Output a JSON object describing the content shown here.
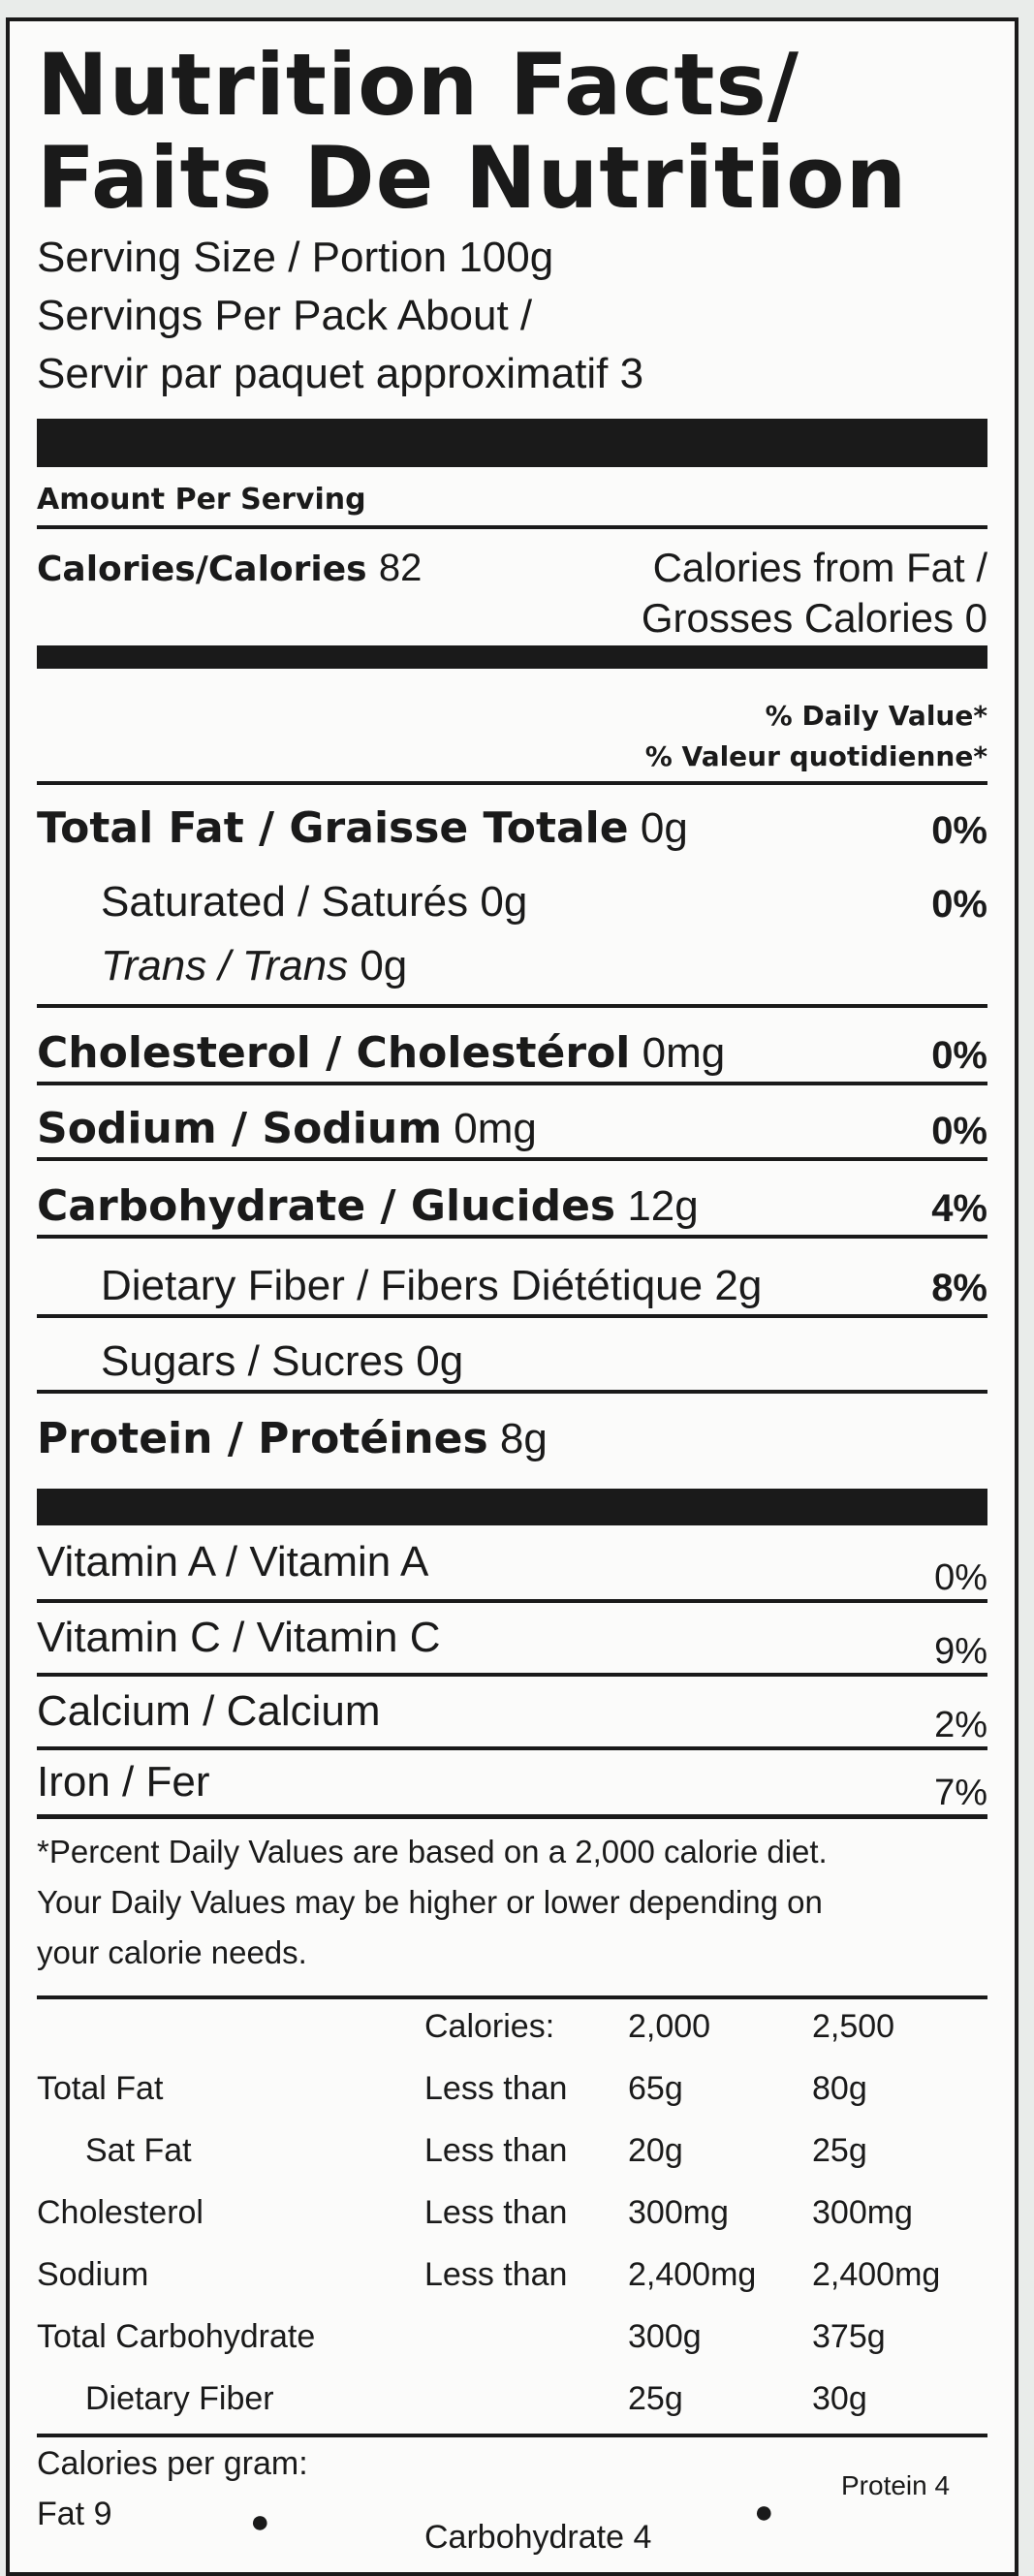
{
  "title_line1": "Nutrition Facts/",
  "title_line2": "Faits De Nutrition",
  "serving_size": "Serving Size / Portion 100g",
  "servings_line1": "Servings Per Pack About /",
  "servings_line2": "Servir par paquet approximatif 3",
  "amount_per_serving": "Amount Per Serving",
  "calories_label": "Calories/Calories",
  "calories_value": "82",
  "calories_fat_line1": "Calories from Fat /",
  "calories_fat_line2": "Grosses Calories 0",
  "dv_header1": "% Daily Value*",
  "dv_header2": "% Valeur quotidienne*",
  "nutrients": [
    {
      "label": "Total Fat / Graisse Totale",
      "amount": "0g",
      "dv": "0%"
    },
    {
      "label": "Saturated / Saturés",
      "amount": "0g",
      "dv": "0%"
    },
    {
      "label": "Trans / Trans",
      "amount": "0g",
      "dv": ""
    },
    {
      "label": "Cholesterol / Cholestérol",
      "amount": "0mg",
      "dv": "0%"
    },
    {
      "label": "Sodium / Sodium",
      "amount": "0mg",
      "dv": "0%"
    },
    {
      "label": "Carbohydrate / Glucides",
      "amount": "12g",
      "dv": "4%"
    },
    {
      "label": "Dietary Fiber / Fibers Diététique",
      "amount": "2g",
      "dv": "8%"
    },
    {
      "label": "Sugars / Sucres",
      "amount": "0g",
      "dv": ""
    },
    {
      "label": "Protein / Protéines",
      "amount": "8g",
      "dv": ""
    }
  ],
  "vitamins": [
    {
      "label": "Vitamin A / Vitamin A",
      "dv": "0%"
    },
    {
      "label": "Vitamin C / Vitamin C",
      "dv": "9%"
    },
    {
      "label": "Calcium / Calcium",
      "dv": "2%"
    },
    {
      "label": "Iron / Fer",
      "dv": "7%"
    }
  ],
  "footnote_line1": "*Percent Daily Values are based on a 2,000 calorie diet.",
  "footnote_line2": "Your Daily Values may be higher or lower depending on",
  "footnote_line3": "your calorie needs.",
  "table": {
    "header": [
      "",
      "Calories:",
      "2,000",
      "2,500"
    ],
    "rows": [
      [
        "Total Fat",
        "Less than",
        "65g",
        "80g"
      ],
      [
        "Sat Fat",
        "Less than",
        "20g",
        "25g"
      ],
      [
        "Cholesterol",
        "Less than",
        "300mg",
        "300mg"
      ],
      [
        "Sodium",
        "Less than",
        "2,400mg",
        "2,400mg"
      ],
      [
        "Total Carbohydrate",
        "",
        "300g",
        "375g"
      ],
      [
        "Dietary Fiber",
        "",
        "25g",
        "30g"
      ]
    ]
  },
  "calories_per_gram": "Calories per gram:",
  "cpg_fat": "Fat 9",
  "cpg_carb": "Carbohydrate 4",
  "cpg_protein": "Protein 4"
}
